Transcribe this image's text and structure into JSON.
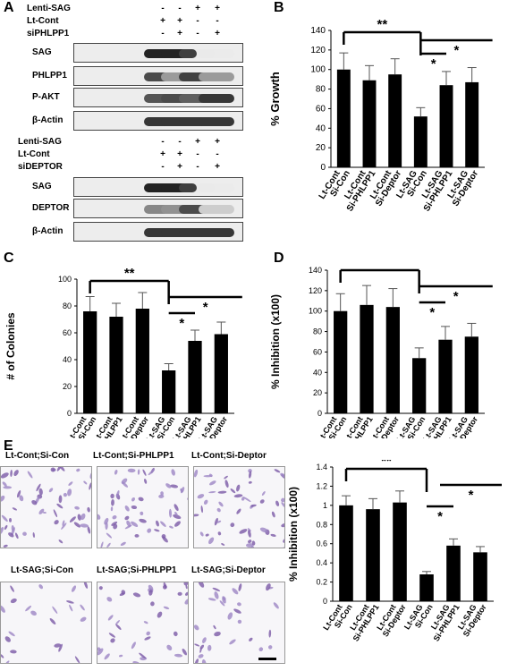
{
  "panels": {
    "A": "A",
    "B": "B",
    "C": "C",
    "D": "D",
    "E": "E"
  },
  "blot_top": {
    "row_labels": [
      "Lenti-SAG",
      "Lt-Cont",
      "siPHLPP1"
    ],
    "row_signs": [
      [
        "-",
        "-",
        "+",
        "+"
      ],
      [
        "+",
        "+",
        "-",
        "-"
      ],
      [
        "-",
        "+",
        "-",
        "+"
      ]
    ],
    "band_labels": [
      "SAG",
      "PHLPP1",
      "P-AKT",
      "β-Actin"
    ]
  },
  "blot_bottom": {
    "row_labels": [
      "Lenti-SAG",
      "Lt-Cont",
      "siDEPTOR"
    ],
    "row_signs": [
      [
        "-",
        "-",
        "+",
        "+"
      ],
      [
        "+",
        "+",
        "-",
        "-"
      ],
      [
        "-",
        "+",
        "-",
        "+"
      ]
    ],
    "band_labels": [
      "SAG",
      "DEPTOR",
      "β-Actin"
    ]
  },
  "micrographs": [
    "Lt-Cont;Si-Con",
    "Lt-Cont;Si-PHLPP1",
    "Lt-Cont;Si-Deptor",
    "Lt-SAG;Si-Con",
    "Lt-SAG;Si-PHLPP1",
    "Lt-SAG;Si-Deptor"
  ],
  "chart_data": [
    {
      "id": "B",
      "type": "bar",
      "ylabel": "% Growth",
      "ylim": [
        0,
        140
      ],
      "yticks": [
        "0",
        "20",
        "40",
        "60",
        "80",
        "100",
        "120",
        "140"
      ],
      "categories": [
        "Lt-Cont Si-Con",
        "Lt-Cont Si-PHLPP1",
        "Lt-Cont Si-Deptor",
        "Lt-SAG Si-Con",
        "Lt-SAG Si-PHLPP1",
        "Lt-SAG Si-Deptor"
      ],
      "tick_lines": [
        [
          "Lt-Cont",
          "Si-Con"
        ],
        [
          "Lt-Cont",
          "Si-PHLPP1"
        ],
        [
          "Lt-Cont",
          "Si-Deptor"
        ],
        [
          "Lt-SAG",
          "Si-Con"
        ],
        [
          "Lt-SAG",
          "Si-PHLPP1"
        ],
        [
          "Lt-SAG",
          "Si-Deptor"
        ]
      ],
      "values": [
        100,
        89,
        95,
        52,
        84,
        87
      ],
      "errors": [
        17,
        15,
        16,
        9,
        14,
        15
      ],
      "annotations": [
        "**",
        "*",
        "*"
      ]
    },
    {
      "id": "C",
      "type": "bar",
      "ylabel": "# of Colonies",
      "ylim": [
        0,
        100
      ],
      "yticks": [
        "0",
        "20",
        "40",
        "60",
        "80",
        "100"
      ],
      "categories": [
        "Lt-Cont Si-Con",
        "Lt-Cont Si-PHLPP1",
        "Lt-Cont Si-Deptor",
        "Lt-SAG Si-Con",
        "Lt-SAG Si-PHLPP1",
        "Lt-SAG Si-Deptor"
      ],
      "tick_lines": [
        [
          "Lt-Cont",
          "Si-Con"
        ],
        [
          "Lt-Cont",
          "Si-PHLPP1"
        ],
        [
          "Lt-Cont",
          "Si-Deptor"
        ],
        [
          "Lt-SAG",
          "Si-Con"
        ],
        [
          "Lt-SAG",
          "Si-PHLPP1"
        ],
        [
          "Lt-SAG",
          "Si-Deptor"
        ]
      ],
      "values": [
        76,
        72,
        78,
        32,
        54,
        59
      ],
      "errors": [
        11,
        10,
        12,
        5,
        8,
        9
      ],
      "annotations": [
        "**",
        "*",
        "*"
      ]
    },
    {
      "id": "D",
      "type": "bar",
      "ylabel": "% Inhibition (x100)",
      "ylim": [
        0,
        140
      ],
      "yticks": [
        "0",
        "20",
        "40",
        "60",
        "80",
        "100",
        "120",
        "140"
      ],
      "categories": [
        "Lt-Cont Si-Con",
        "Lt-Cont Si-PHLPP1",
        "Lt-Cont Si-Deptor",
        "Lt-SAG Si-Con",
        "Lt-SAG Si-PHLPP1",
        "Lt-SAG Si-Deptor"
      ],
      "tick_lines": [
        [
          "Lt-Cont",
          "Si-Con"
        ],
        [
          "Lt-Cont",
          "Si-PHLPP1"
        ],
        [
          "Lt-Cont",
          "Si-Deptor"
        ],
        [
          "Lt-SAG",
          "Si-Con"
        ],
        [
          "Lt-SAG",
          "Si-PHLPP1"
        ],
        [
          "Lt-SAG",
          "Si-Deptor"
        ]
      ],
      "values": [
        100,
        106,
        104,
        54,
        72,
        75
      ],
      "errors": [
        17,
        19,
        18,
        10,
        13,
        13
      ],
      "annotations": [
        "**",
        "*",
        "*"
      ]
    },
    {
      "id": "E",
      "type": "bar",
      "ylabel": "% Inhibition (x100)",
      "ylim": [
        0,
        1.4
      ],
      "yticks": [
        "0",
        "0.2",
        "0.4",
        "0.6",
        "0.8",
        "1",
        "1.2",
        "1.4"
      ],
      "categories": [
        "Lt-Cont Si-Con",
        "Lt-Cont Si-PHLPP1",
        "Lt-Cont Si-Deptor",
        "Lt-SAG Si-Con",
        "Lt-SAG Si-PHLPP1",
        "Lt-SAG Si-Deptor"
      ],
      "tick_lines": [
        [
          "Lt-Cont",
          "Si-Con"
        ],
        [
          "Lt-Cont",
          "Si-PHLPP1"
        ],
        [
          "Lt-Cont",
          "Si-Deptor"
        ],
        [
          "Lt-SAG",
          "Si-Con"
        ],
        [
          "Lt-SAG",
          "Si-PHLPP1"
        ],
        [
          "Lt-SAG",
          "Si-Deptor"
        ]
      ],
      "values": [
        1.0,
        0.96,
        1.03,
        0.28,
        0.58,
        0.51
      ],
      "errors": [
        0.1,
        0.11,
        0.12,
        0.03,
        0.07,
        0.06
      ],
      "annotations": [
        "**",
        "*",
        "*"
      ]
    }
  ]
}
